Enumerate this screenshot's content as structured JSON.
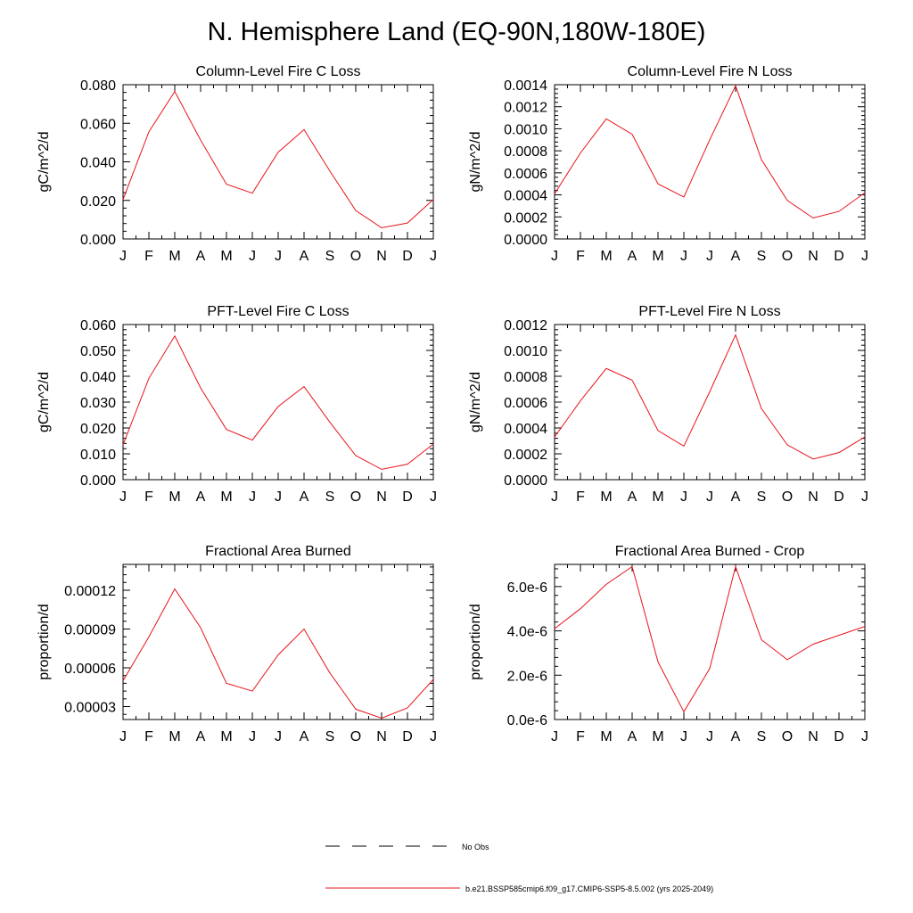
{
  "figure_title": "N. Hemisphere Land (EQ-90N,180W-180E)",
  "legend": {
    "items": [
      {
        "label": "No Obs",
        "color": "#000000",
        "dash": true
      },
      {
        "label": "b.e21.BSSP585cmip6.f09_g17.CMIP6-SSP5-8.5.002 (yrs 2025-2049)",
        "color": "#e8141c",
        "dash": false
      }
    ]
  },
  "chart_data": [
    {
      "type": "line",
      "title": "Column-Level Fire C Loss",
      "ylabel": "gC/m^2/d",
      "categories": [
        "J",
        "F",
        "M",
        "A",
        "M",
        "J",
        "J",
        "A",
        "S",
        "O",
        "N",
        "D",
        "J"
      ],
      "ylim": [
        0,
        0.08
      ],
      "yticks": [
        0,
        0.02,
        0.04,
        0.06,
        0.08
      ],
      "ytick_labels": [
        "0.000",
        "0.020",
        "0.040",
        "0.060",
        "0.080"
      ],
      "series": [
        {
          "color": "#e8141c",
          "values": [
            0.0205,
            0.0556,
            0.0765,
            0.0513,
            0.0284,
            0.0237,
            0.045,
            0.0567,
            0.0352,
            0.0147,
            0.0058,
            0.0083,
            0.0205
          ]
        }
      ]
    },
    {
      "type": "line",
      "title": "Column-Level Fire N Loss",
      "ylabel": "gN/m^2/d",
      "categories": [
        "J",
        "F",
        "M",
        "A",
        "M",
        "J",
        "J",
        "A",
        "S",
        "O",
        "N",
        "D",
        "J"
      ],
      "ylim": [
        0,
        0.0014
      ],
      "yticks": [
        0,
        0.0002,
        0.0004,
        0.0006,
        0.0008,
        0.001,
        0.0012,
        0.0014
      ],
      "ytick_labels": [
        "0.0000",
        "0.0002",
        "0.0004",
        "0.0006",
        "0.0008",
        "0.0010",
        "0.0012",
        "0.0014"
      ],
      "series": [
        {
          "color": "#e8141c",
          "values": [
            0.00041,
            0.00078,
            0.00109,
            0.00095,
            0.0005,
            0.00038,
            0.0009,
            0.00139,
            0.00072,
            0.00035,
            0.00019,
            0.00025,
            0.00042
          ]
        }
      ]
    },
    {
      "type": "line",
      "title": "PFT-Level Fire C Loss",
      "ylabel": "gC/m^2/d",
      "categories": [
        "J",
        "F",
        "M",
        "A",
        "M",
        "J",
        "J",
        "A",
        "S",
        "O",
        "N",
        "D",
        "J"
      ],
      "ylim": [
        0,
        0.06
      ],
      "yticks": [
        0,
        0.01,
        0.02,
        0.03,
        0.04,
        0.05,
        0.06
      ],
      "ytick_labels": [
        "0.000",
        "0.010",
        "0.020",
        "0.030",
        "0.040",
        "0.050",
        "0.060"
      ],
      "series": [
        {
          "color": "#e8141c",
          "values": [
            0.0135,
            0.0392,
            0.0556,
            0.0355,
            0.0194,
            0.0153,
            0.0283,
            0.036,
            0.0222,
            0.0093,
            0.004,
            0.006,
            0.0138
          ]
        }
      ]
    },
    {
      "type": "line",
      "title": "PFT-Level Fire N Loss",
      "ylabel": "gN/m^2/d",
      "categories": [
        "J",
        "F",
        "M",
        "A",
        "M",
        "J",
        "J",
        "A",
        "S",
        "O",
        "N",
        "D",
        "J"
      ],
      "ylim": [
        0,
        0.0012
      ],
      "yticks": [
        0,
        0.0002,
        0.0004,
        0.0006,
        0.0008,
        0.001,
        0.0012
      ],
      "ytick_labels": [
        "0.0000",
        "0.0002",
        "0.0004",
        "0.0006",
        "0.0008",
        "0.0010",
        "0.0012"
      ],
      "series": [
        {
          "color": "#e8141c",
          "values": [
            0.00033,
            0.00061,
            0.00086,
            0.00077,
            0.00038,
            0.00026,
            0.00068,
            0.00112,
            0.00055,
            0.00027,
            0.00016,
            0.00021,
            0.00033
          ]
        }
      ]
    },
    {
      "type": "line",
      "title": "Fractional Area Burned",
      "ylabel": "proportion/d",
      "categories": [
        "J",
        "F",
        "M",
        "A",
        "M",
        "J",
        "J",
        "A",
        "S",
        "O",
        "N",
        "D",
        "J"
      ],
      "ylim": [
        2e-05,
        0.00014
      ],
      "yticks": [
        3e-05,
        6e-05,
        9e-05,
        0.00012
      ],
      "ytick_labels": [
        "0.00003",
        "0.00006",
        "0.00009",
        "0.00012"
      ],
      "series": [
        {
          "color": "#e8141c",
          "values": [
            5e-05,
            8.4e-05,
            0.000121,
            9.1e-05,
            4.8e-05,
            4.2e-05,
            7e-05,
            9e-05,
            5.6e-05,
            2.8e-05,
            2.1e-05,
            2.9e-05,
            5.1e-05
          ]
        }
      ]
    },
    {
      "type": "line",
      "title": "Fractional Area Burned - Crop",
      "ylabel": "proportion/d",
      "categories": [
        "J",
        "F",
        "M",
        "A",
        "M",
        "J",
        "J",
        "A",
        "S",
        "O",
        "N",
        "D",
        "J"
      ],
      "ylim": [
        0,
        7e-06
      ],
      "yticks": [
        0,
        2e-06,
        4e-06,
        6e-06
      ],
      "ytick_labels": [
        "0.0e-6",
        "2.0e-6",
        "4.0e-6",
        "6.0e-6"
      ],
      "series": [
        {
          "color": "#e8141c",
          "values": [
            4.1e-06,
            5e-06,
            6.1e-06,
            6.9e-06,
            2.6e-06,
            3.5e-07,
            2.3e-06,
            6.9e-06,
            3.6e-06,
            2.7e-06,
            3.4e-06,
            3.8e-06,
            4.2e-06
          ]
        }
      ]
    }
  ]
}
